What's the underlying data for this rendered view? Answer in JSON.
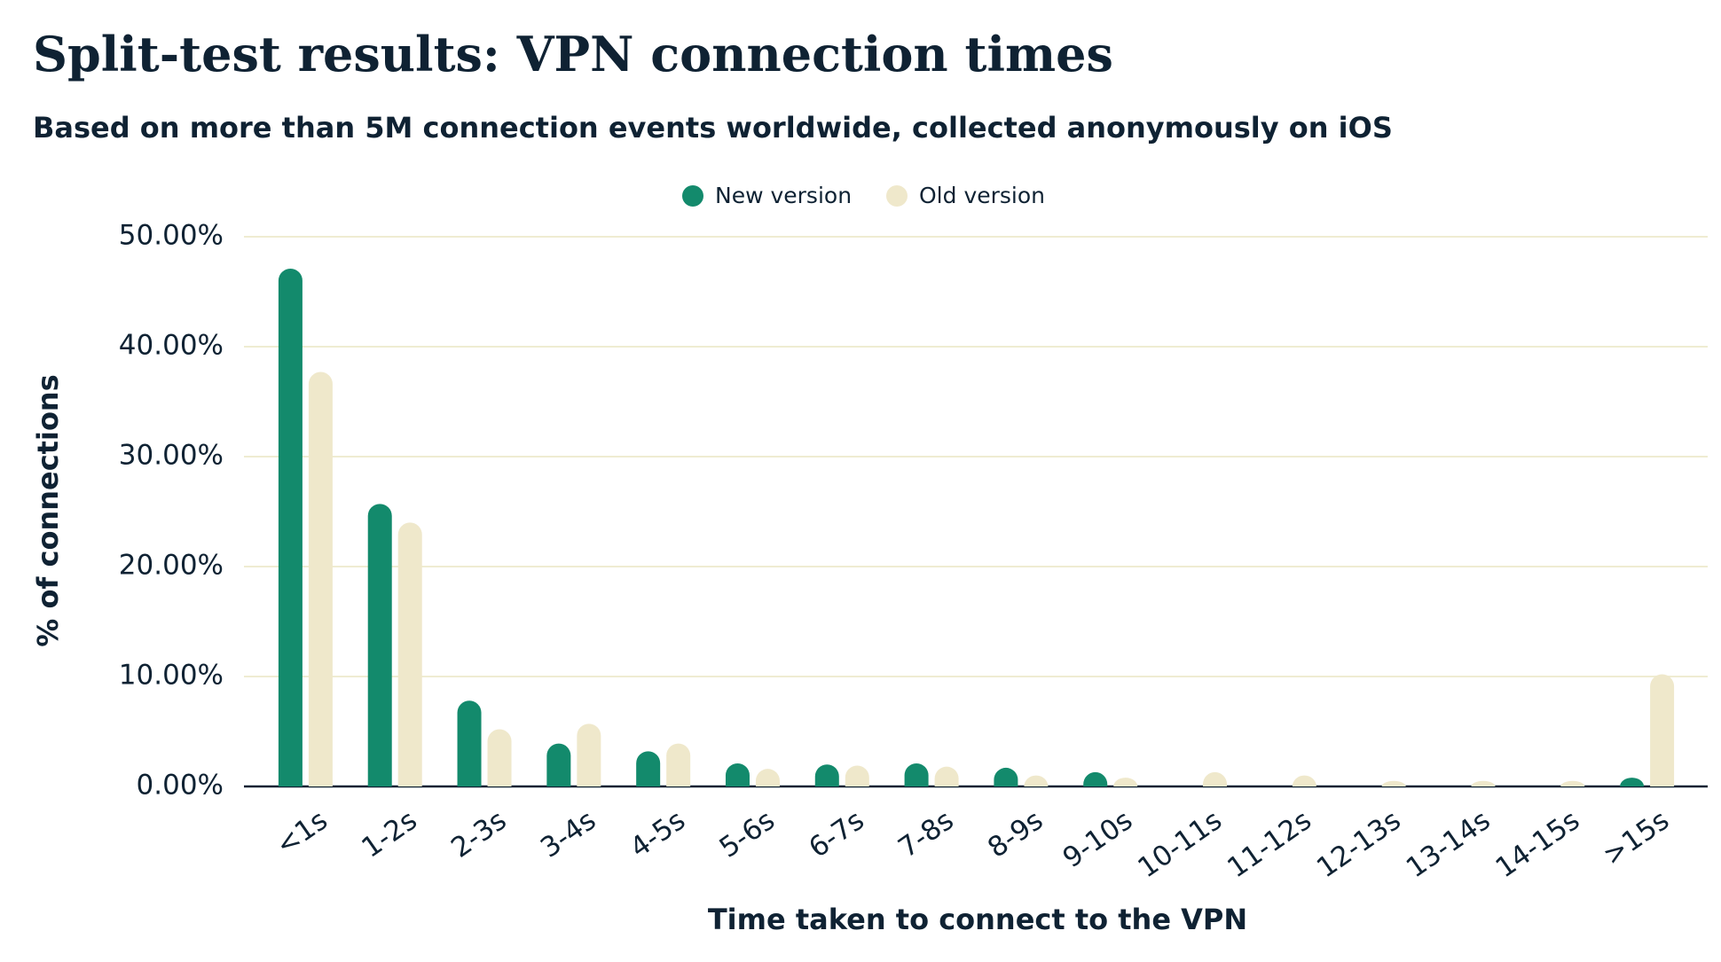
{
  "chart_data": {
    "type": "bar",
    "title": "Split-test results: VPN connection times",
    "subtitle": "Based on more than 5M connection events worldwide, collected anonymously on iOS",
    "x_label": "Time taken to connect to the VPN",
    "y_label": "% of connections",
    "categories": [
      "<1s",
      "1-2s",
      "2-3s",
      "3-4s",
      "4-5s",
      "5-6s",
      "6-7s",
      "7-8s",
      "8-9s",
      "9-10s",
      "10-11s",
      "11-12s",
      "12-13s",
      "13-14s",
      "14-15s",
      ">15s"
    ],
    "series": [
      {
        "name": "New version",
        "color": "#138a6c",
        "values": [
          47.1,
          25.7,
          7.8,
          3.9,
          3.2,
          2.1,
          2.0,
          2.1,
          1.7,
          1.3,
          0,
          0,
          0,
          0,
          0,
          0.8
        ]
      },
      {
        "name": "Old version",
        "color": "#efe8cb",
        "values": [
          37.7,
          24.0,
          5.2,
          5.7,
          3.9,
          1.6,
          1.9,
          1.8,
          1.0,
          0.8,
          1.3,
          1.0,
          0.5,
          0.5,
          0.5,
          10.2
        ]
      }
    ],
    "ylim": [
      0,
      50
    ],
    "yticks": [
      {
        "value": 0,
        "label": "0.00%"
      },
      {
        "value": 10,
        "label": "10.00%"
      },
      {
        "value": 20,
        "label": "20.00%"
      },
      {
        "value": 30,
        "label": "30.00%"
      },
      {
        "value": 40,
        "label": "40.00%"
      },
      {
        "value": 50,
        "label": "50.00%"
      }
    ],
    "grid": true,
    "legend": "top"
  }
}
